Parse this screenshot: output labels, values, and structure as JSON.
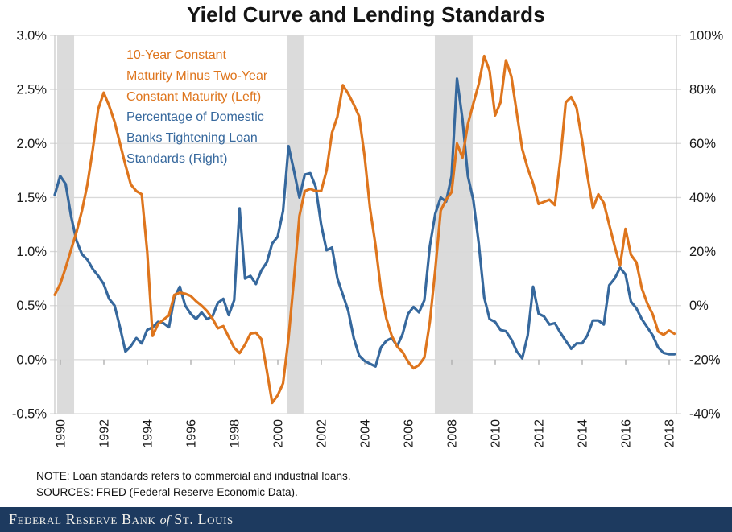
{
  "title": "Yield Curve and Lending Standards",
  "legend": {
    "series1_lines": [
      "10-Year Constant",
      "Maturity Minus Two-Year",
      "Constant Maturity (Left)"
    ],
    "series2_lines": [
      "Percentage of Domestic",
      "Banks Tightening Loan",
      "Standards (Right)"
    ]
  },
  "notes": {
    "note": "NOTE: Loan standards refers to commercial and industrial loans.",
    "sources": "SOURCES: FRED (Federal Reserve Economic Data)."
  },
  "footer": {
    "bank": "Federal Reserve Bank",
    "of": "of",
    "city": "St. Louis"
  },
  "colors": {
    "orange": "#DE751D",
    "blue": "#36689D",
    "gridline": "#D9D9D9",
    "band": "#DBDBDB",
    "axis_line": "#C6C6C6",
    "tick": "#ABABAB",
    "text": "#1A1A1A",
    "footer_bg": "#1D3A5F"
  },
  "chart_data": {
    "type": "line",
    "title": "Yield Curve and Lending Standards",
    "grid": "horizontal",
    "legend_position": "top-left-inside",
    "left_axis": {
      "min": -0.5,
      "max": 3.0,
      "tick_values": [
        3.0,
        2.5,
        2.0,
        1.5,
        1.0,
        0.5,
        0.0,
        -0.5
      ],
      "tick_labels": [
        "3.0%",
        "2.5%",
        "2.0%",
        "1.5%",
        "1.0%",
        "0.5%",
        "0.0%",
        "-0.5%"
      ]
    },
    "right_axis": {
      "min": -40,
      "max": 100,
      "tick_values": [
        100,
        80,
        60,
        40,
        20,
        0,
        -20,
        -40
      ],
      "tick_labels": [
        "100%",
        "80%",
        "60%",
        "40%",
        "20%",
        "0%",
        "-20%",
        "-40%"
      ]
    },
    "x_axis": {
      "min": 1990,
      "max": 2018.6,
      "tick_years": [
        1990,
        1992,
        1994,
        1996,
        1998,
        2000,
        2002,
        2004,
        2006,
        2008,
        2010,
        2012,
        2014,
        2016,
        2018
      ],
      "tick_labels": [
        "1990",
        "1992",
        "1994",
        "1996",
        "1998",
        "2000",
        "2002",
        "2004",
        "2006",
        "2008",
        "2010",
        "2012",
        "2014",
        "2016",
        "2018"
      ]
    },
    "recession_bands": [
      [
        1990.11,
        1990.89
      ],
      [
        2000.7,
        2001.44
      ],
      [
        2007.48,
        2009.22
      ]
    ],
    "series": [
      {
        "name": "10-Year Constant Maturity Minus Two-Year Constant Maturity (Left)",
        "axis": "left",
        "color": "#DE751D",
        "points": [
          [
            1990.0,
            0.6
          ],
          [
            1990.25,
            0.7
          ],
          [
            1990.5,
            0.85
          ],
          [
            1990.75,
            1.02
          ],
          [
            1991.0,
            1.18
          ],
          [
            1991.25,
            1.38
          ],
          [
            1991.5,
            1.62
          ],
          [
            1991.75,
            1.95
          ],
          [
            1992.0,
            2.32
          ],
          [
            1992.25,
            2.47
          ],
          [
            1992.5,
            2.35
          ],
          [
            1992.75,
            2.2
          ],
          [
            1993.0,
            2.0
          ],
          [
            1993.25,
            1.8
          ],
          [
            1993.5,
            1.62
          ],
          [
            1993.75,
            1.56
          ],
          [
            1994.0,
            1.53
          ],
          [
            1994.25,
            1.0
          ],
          [
            1994.5,
            0.22
          ],
          [
            1994.75,
            0.33
          ],
          [
            1995.0,
            0.37
          ],
          [
            1995.25,
            0.41
          ],
          [
            1995.5,
            0.6
          ],
          [
            1995.75,
            0.62
          ],
          [
            1996.0,
            0.61
          ],
          [
            1996.25,
            0.59
          ],
          [
            1996.5,
            0.54
          ],
          [
            1996.75,
            0.5
          ],
          [
            1997.0,
            0.45
          ],
          [
            1997.25,
            0.38
          ],
          [
            1997.5,
            0.29
          ],
          [
            1997.75,
            0.31
          ],
          [
            1998.0,
            0.21
          ],
          [
            1998.25,
            0.11
          ],
          [
            1998.5,
            0.06
          ],
          [
            1998.75,
            0.14
          ],
          [
            1999.0,
            0.24
          ],
          [
            1999.25,
            0.25
          ],
          [
            1999.5,
            0.19
          ],
          [
            1999.75,
            -0.1
          ],
          [
            2000.0,
            -0.4
          ],
          [
            2000.25,
            -0.33
          ],
          [
            2000.5,
            -0.22
          ],
          [
            2000.75,
            0.2
          ],
          [
            2001.0,
            0.74
          ],
          [
            2001.25,
            1.33
          ],
          [
            2001.5,
            1.56
          ],
          [
            2001.75,
            1.58
          ],
          [
            2002.0,
            1.56
          ],
          [
            2002.25,
            1.56
          ],
          [
            2002.5,
            1.75
          ],
          [
            2002.75,
            2.1
          ],
          [
            2003.0,
            2.25
          ],
          [
            2003.25,
            2.54
          ],
          [
            2003.5,
            2.46
          ],
          [
            2003.75,
            2.36
          ],
          [
            2004.0,
            2.25
          ],
          [
            2004.25,
            1.88
          ],
          [
            2004.5,
            1.4
          ],
          [
            2004.75,
            1.06
          ],
          [
            2005.0,
            0.65
          ],
          [
            2005.25,
            0.38
          ],
          [
            2005.5,
            0.22
          ],
          [
            2005.75,
            0.12
          ],
          [
            2006.0,
            0.07
          ],
          [
            2006.25,
            -0.02
          ],
          [
            2006.5,
            -0.08
          ],
          [
            2006.75,
            -0.05
          ],
          [
            2007.0,
            0.02
          ],
          [
            2007.25,
            0.35
          ],
          [
            2007.5,
            0.83
          ],
          [
            2007.75,
            1.38
          ],
          [
            2008.0,
            1.48
          ],
          [
            2008.25,
            1.55
          ],
          [
            2008.5,
            2.0
          ],
          [
            2008.75,
            1.87
          ],
          [
            2009.0,
            2.18
          ],
          [
            2009.25,
            2.37
          ],
          [
            2009.5,
            2.55
          ],
          [
            2009.75,
            2.81
          ],
          [
            2010.0,
            2.67
          ],
          [
            2010.25,
            2.26
          ],
          [
            2010.5,
            2.38
          ],
          [
            2010.75,
            2.77
          ],
          [
            2011.0,
            2.62
          ],
          [
            2011.25,
            2.28
          ],
          [
            2011.5,
            1.95
          ],
          [
            2011.75,
            1.77
          ],
          [
            2012.0,
            1.63
          ],
          [
            2012.25,
            1.44
          ],
          [
            2012.5,
            1.46
          ],
          [
            2012.75,
            1.48
          ],
          [
            2013.0,
            1.43
          ],
          [
            2013.25,
            1.85
          ],
          [
            2013.5,
            2.38
          ],
          [
            2013.75,
            2.43
          ],
          [
            2014.0,
            2.33
          ],
          [
            2014.25,
            2.03
          ],
          [
            2014.5,
            1.7
          ],
          [
            2014.75,
            1.4
          ],
          [
            2015.0,
            1.53
          ],
          [
            2015.25,
            1.45
          ],
          [
            2015.5,
            1.25
          ],
          [
            2015.75,
            1.05
          ],
          [
            2016.0,
            0.87
          ],
          [
            2016.25,
            1.21
          ],
          [
            2016.5,
            0.97
          ],
          [
            2016.75,
            0.9
          ],
          [
            2017.0,
            0.66
          ],
          [
            2017.25,
            0.52
          ],
          [
            2017.5,
            0.42
          ],
          [
            2017.75,
            0.26
          ],
          [
            2018.0,
            0.23
          ],
          [
            2018.25,
            0.27
          ],
          [
            2018.5,
            0.24
          ]
        ]
      },
      {
        "name": "Percentage of Domestic Banks Tightening Loan Standards (Right)",
        "axis": "right",
        "color": "#36689D",
        "points": [
          [
            1990.0,
            41
          ],
          [
            1990.25,
            48
          ],
          [
            1990.5,
            45
          ],
          [
            1990.75,
            33
          ],
          [
            1991.0,
            24
          ],
          [
            1991.25,
            19
          ],
          [
            1991.5,
            17
          ],
          [
            1991.75,
            13.5
          ],
          [
            1992.0,
            11
          ],
          [
            1992.25,
            8
          ],
          [
            1992.5,
            2.5
          ],
          [
            1992.75,
            0
          ],
          [
            1993.0,
            -8
          ],
          [
            1993.25,
            -17
          ],
          [
            1993.5,
            -15
          ],
          [
            1993.75,
            -12
          ],
          [
            1994.0,
            -14
          ],
          [
            1994.25,
            -9
          ],
          [
            1994.5,
            -8
          ],
          [
            1994.75,
            -6
          ],
          [
            1995.0,
            -6.5
          ],
          [
            1995.25,
            -8
          ],
          [
            1995.5,
            3
          ],
          [
            1995.75,
            7
          ],
          [
            1996.0,
            0
          ],
          [
            1996.25,
            -3
          ],
          [
            1996.5,
            -5
          ],
          [
            1996.75,
            -2.5
          ],
          [
            1997.0,
            -5
          ],
          [
            1997.25,
            -4
          ],
          [
            1997.5,
            1
          ],
          [
            1997.75,
            2.5
          ],
          [
            1998.0,
            -3.5
          ],
          [
            1998.25,
            2
          ],
          [
            1998.5,
            36
          ],
          [
            1998.75,
            10
          ],
          [
            1999.0,
            11
          ],
          [
            1999.25,
            8
          ],
          [
            1999.5,
            13
          ],
          [
            1999.75,
            16
          ],
          [
            2000.0,
            23
          ],
          [
            2000.25,
            25.5
          ],
          [
            2000.5,
            35
          ],
          [
            2000.75,
            59
          ],
          [
            2001.0,
            50
          ],
          [
            2001.25,
            40
          ],
          [
            2001.5,
            48.5
          ],
          [
            2001.75,
            49
          ],
          [
            2002.0,
            44
          ],
          [
            2002.25,
            30
          ],
          [
            2002.5,
            20.5
          ],
          [
            2002.75,
            21.5
          ],
          [
            2003.0,
            10
          ],
          [
            2003.25,
            4
          ],
          [
            2003.5,
            -2
          ],
          [
            2003.75,
            -12
          ],
          [
            2004.0,
            -18.5
          ],
          [
            2004.25,
            -20.5
          ],
          [
            2004.5,
            -21.5
          ],
          [
            2004.75,
            -22.5
          ],
          [
            2005.0,
            -15.5
          ],
          [
            2005.25,
            -13
          ],
          [
            2005.5,
            -12
          ],
          [
            2005.75,
            -15
          ],
          [
            2006.0,
            -10.5
          ],
          [
            2006.25,
            -3
          ],
          [
            2006.5,
            -0.5
          ],
          [
            2006.75,
            -2.5
          ],
          [
            2007.0,
            2
          ],
          [
            2007.25,
            22
          ],
          [
            2007.5,
            34
          ],
          [
            2007.75,
            40
          ],
          [
            2008.0,
            38.5
          ],
          [
            2008.25,
            48
          ],
          [
            2008.5,
            84
          ],
          [
            2008.75,
            69
          ],
          [
            2009.0,
            48
          ],
          [
            2009.25,
            39
          ],
          [
            2009.5,
            23
          ],
          [
            2009.75,
            3
          ],
          [
            2010.0,
            -5
          ],
          [
            2010.25,
            -6
          ],
          [
            2010.5,
            -9
          ],
          [
            2010.75,
            -9.5
          ],
          [
            2011.0,
            -12.5
          ],
          [
            2011.25,
            -17
          ],
          [
            2011.5,
            -19.5
          ],
          [
            2011.75,
            -11
          ],
          [
            2012.0,
            7
          ],
          [
            2012.25,
            -3
          ],
          [
            2012.5,
            -4
          ],
          [
            2012.75,
            -7
          ],
          [
            2013.0,
            -6.5
          ],
          [
            2013.25,
            -10
          ],
          [
            2013.5,
            -13
          ],
          [
            2013.75,
            -16
          ],
          [
            2014.0,
            -14
          ],
          [
            2014.25,
            -14
          ],
          [
            2014.5,
            -11
          ],
          [
            2014.75,
            -5.5
          ],
          [
            2015.0,
            -5.5
          ],
          [
            2015.25,
            -7
          ],
          [
            2015.5,
            7.5
          ],
          [
            2015.75,
            10
          ],
          [
            2016.0,
            14
          ],
          [
            2016.25,
            11.5
          ],
          [
            2016.5,
            1.5
          ],
          [
            2016.75,
            -1
          ],
          [
            2017.0,
            -5
          ],
          [
            2017.25,
            -8
          ],
          [
            2017.5,
            -11
          ],
          [
            2017.75,
            -15.5
          ],
          [
            2018.0,
            -17.5
          ],
          [
            2018.25,
            -18
          ],
          [
            2018.5,
            -18
          ]
        ]
      }
    ]
  }
}
